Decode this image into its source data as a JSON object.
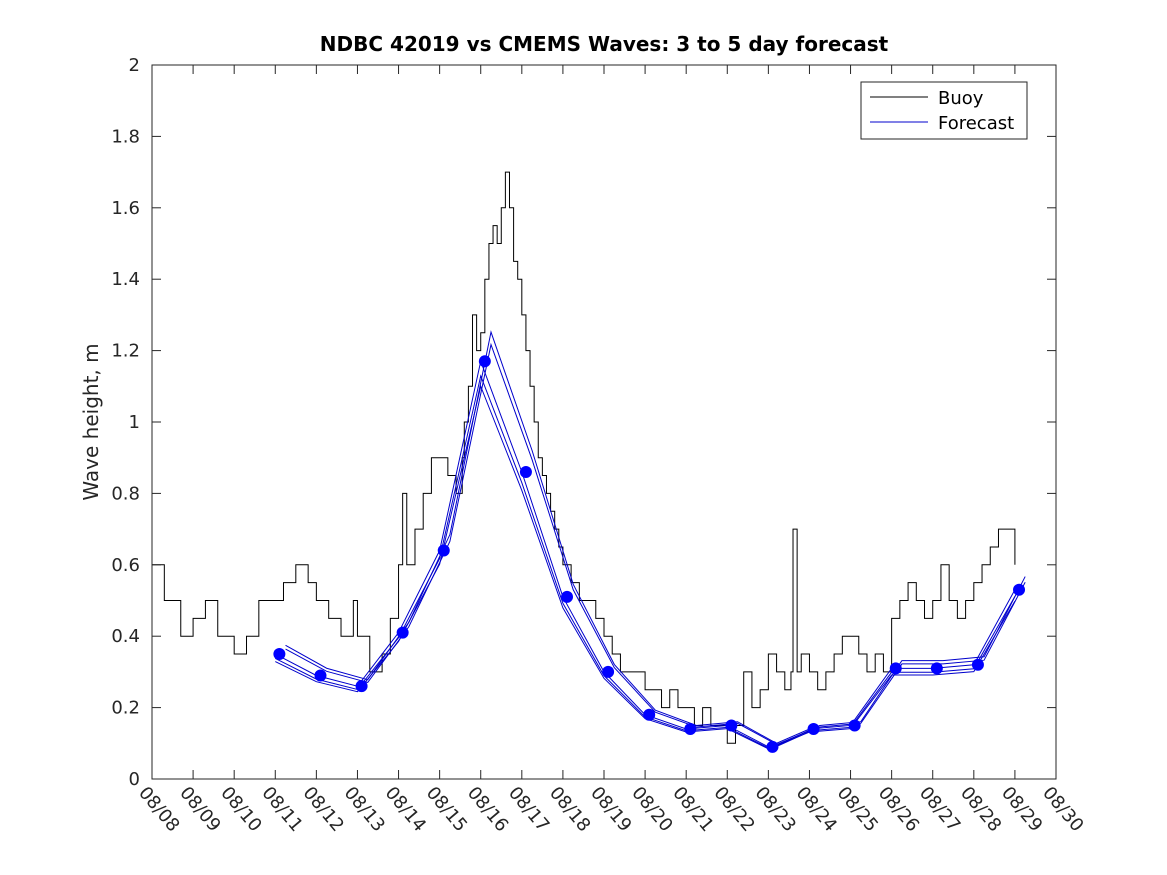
{
  "chart_data": {
    "type": "line",
    "title": "NDBC 42019 vs CMEMS Waves: 3 to 5 day forecast",
    "xlabel": "",
    "ylabel": "Wave height, m",
    "ylim": [
      0,
      2
    ],
    "yticks": [
      0,
      0.2,
      0.4,
      0.6,
      0.8,
      1,
      1.2,
      1.4,
      1.6,
      1.8,
      2
    ],
    "ytick_labels": [
      "0",
      "0.2",
      "0.4",
      "0.6",
      "0.8",
      "1",
      "1.2",
      "1.4",
      "1.6",
      "1.8",
      "2"
    ],
    "xlim_days": [
      8,
      30
    ],
    "xticks_days": [
      8,
      9,
      10,
      11,
      12,
      13,
      14,
      15,
      16,
      17,
      18,
      19,
      20,
      21,
      22,
      23,
      24,
      25,
      26,
      27,
      28,
      29,
      30
    ],
    "xtick_labels": [
      "08/08",
      "08/09",
      "08/10",
      "08/11",
      "08/12",
      "08/13",
      "08/14",
      "08/15",
      "08/16",
      "08/17",
      "08/18",
      "08/19",
      "08/20",
      "08/21",
      "08/22",
      "08/23",
      "08/24",
      "08/25",
      "08/26",
      "08/27",
      "08/28",
      "08/29",
      "08/30"
    ],
    "legend": {
      "position": "top-right",
      "entries": [
        {
          "label": "Buoy",
          "color": "#000000"
        },
        {
          "label": "Forecast",
          "color": "#0000cc"
        }
      ]
    },
    "colors": {
      "buoy": "#000000",
      "forecast": "#0000cc",
      "marker": "#0000ff"
    },
    "series": [
      {
        "name": "Buoy",
        "x": [
          8.0,
          8.2,
          8.3,
          8.5,
          8.7,
          9.0,
          9.3,
          9.6,
          9.9,
          10.0,
          10.3,
          10.6,
          10.9,
          11.2,
          11.5,
          11.8,
          12.0,
          12.3,
          12.6,
          12.9,
          13.0,
          13.3,
          13.6,
          13.8,
          14.0,
          14.1,
          14.2,
          14.4,
          14.6,
          14.8,
          15.0,
          15.2,
          15.4,
          15.55,
          15.6,
          15.7,
          15.8,
          15.9,
          16.0,
          16.1,
          16.2,
          16.3,
          16.4,
          16.5,
          16.6,
          16.7,
          16.8,
          16.9,
          17.0,
          17.1,
          17.2,
          17.3,
          17.4,
          17.5,
          17.6,
          17.7,
          17.8,
          17.9,
          18.0,
          18.2,
          18.4,
          18.6,
          18.8,
          19.0,
          19.2,
          19.4,
          19.6,
          19.8,
          20.0,
          20.2,
          20.4,
          20.6,
          20.8,
          21.0,
          21.2,
          21.4,
          21.6,
          21.8,
          22.0,
          22.2,
          22.4,
          22.6,
          22.8,
          23.0,
          23.2,
          23.4,
          23.55,
          23.6,
          23.7,
          23.8,
          24.0,
          24.2,
          24.4,
          24.6,
          24.8,
          25.0,
          25.2,
          25.4,
          25.6,
          25.8,
          26.0,
          26.2,
          26.4,
          26.6,
          26.8,
          27.0,
          27.2,
          27.4,
          27.6,
          27.8,
          28.0,
          28.2,
          28.4,
          28.6,
          28.8,
          29.0
        ],
        "values": [
          0.6,
          0.6,
          0.5,
          0.5,
          0.4,
          0.45,
          0.5,
          0.4,
          0.4,
          0.35,
          0.4,
          0.5,
          0.5,
          0.55,
          0.6,
          0.55,
          0.5,
          0.45,
          0.4,
          0.5,
          0.4,
          0.3,
          0.35,
          0.45,
          0.6,
          0.8,
          0.6,
          0.7,
          0.8,
          0.9,
          0.9,
          0.85,
          0.8,
          0.9,
          1.0,
          1.1,
          1.3,
          1.2,
          1.25,
          1.4,
          1.5,
          1.55,
          1.5,
          1.6,
          1.7,
          1.6,
          1.45,
          1.4,
          1.3,
          1.2,
          1.1,
          1.0,
          0.9,
          0.85,
          0.8,
          0.75,
          0.7,
          0.65,
          0.6,
          0.55,
          0.5,
          0.5,
          0.45,
          0.4,
          0.35,
          0.3,
          0.3,
          0.3,
          0.25,
          0.25,
          0.2,
          0.25,
          0.2,
          0.2,
          0.15,
          0.2,
          0.15,
          0.15,
          0.1,
          0.15,
          0.3,
          0.2,
          0.25,
          0.35,
          0.3,
          0.25,
          0.3,
          0.7,
          0.3,
          0.35,
          0.3,
          0.25,
          0.3,
          0.35,
          0.4,
          0.4,
          0.35,
          0.3,
          0.35,
          0.3,
          0.45,
          0.5,
          0.55,
          0.5,
          0.45,
          0.5,
          0.6,
          0.5,
          0.45,
          0.5,
          0.55,
          0.6,
          0.65,
          0.7,
          0.7,
          0.6
        ]
      },
      {
        "name": "Forecast",
        "x": [
          11.1,
          12.1,
          13.1,
          14.1,
          15.1,
          16.1,
          17.1,
          18.1,
          19.1,
          20.1,
          21.1,
          22.1,
          23.1,
          24.1,
          25.1,
          26.1,
          27.1,
          28.1,
          29.1
        ],
        "values": [
          0.35,
          0.29,
          0.26,
          0.41,
          0.64,
          1.17,
          0.86,
          0.51,
          0.3,
          0.18,
          0.14,
          0.15,
          0.09,
          0.14,
          0.15,
          0.31,
          0.31,
          0.32,
          0.53
        ]
      }
    ]
  }
}
